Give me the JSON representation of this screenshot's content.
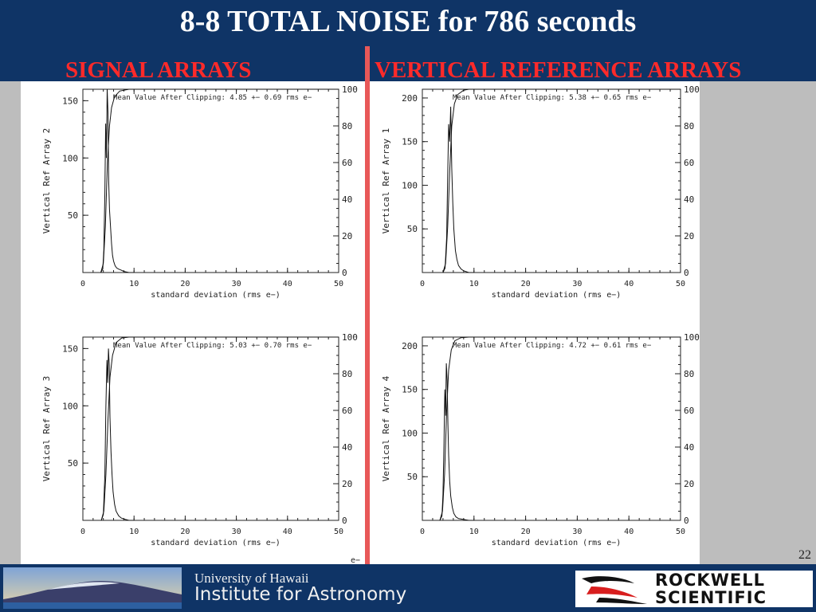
{
  "slide": {
    "title": "8-8 TOTAL NOISE for 786 seconds",
    "left_heading": "SIGNAL ARRAYS",
    "right_heading": "VERTICAL REFERENCE ARRAYS",
    "page_number": "22",
    "corner_label": "e−"
  },
  "footer": {
    "uh_line1": "University of Hawaii",
    "uh_line2": "Institute for Astronomy",
    "rs_line1": "ROCKWELL",
    "rs_line2": "SCIENTIFIC"
  },
  "colors": {
    "header_bg": "#0f3466",
    "heading_red": "#ff2a2a",
    "divider": "#e85858"
  },
  "chart_data": [
    {
      "type": "line",
      "ylabel": "Vertical Ref Array 2",
      "xlabel": "standard deviation (rms e−)",
      "annotation": "Mean Value After Clipping:   4.85 +− 0.69 rms e−",
      "xlim": [
        0,
        50
      ],
      "ylim": [
        0,
        160
      ],
      "y2lim": [
        0,
        100
      ],
      "xticks": [
        0,
        10,
        20,
        30,
        40,
        50
      ],
      "yticks": [
        50,
        100,
        150
      ],
      "y2ticks": [
        0,
        20,
        40,
        60,
        80,
        100
      ],
      "histogram": [
        [
          3.5,
          0
        ],
        [
          3.9,
          3
        ],
        [
          4.1,
          20
        ],
        [
          4.3,
          70
        ],
        [
          4.45,
          130
        ],
        [
          4.6,
          100
        ],
        [
          4.75,
          160
        ],
        [
          4.9,
          140
        ],
        [
          5.05,
          80
        ],
        [
          5.2,
          55
        ],
        [
          5.4,
          40
        ],
        [
          5.6,
          25
        ],
        [
          5.8,
          15
        ],
        [
          6.0,
          10
        ],
        [
          6.3,
          6
        ],
        [
          6.6,
          4
        ],
        [
          7.0,
          3
        ],
        [
          7.5,
          2
        ],
        [
          8.0,
          1
        ],
        [
          9.0,
          0
        ],
        [
          10.0,
          0
        ]
      ],
      "cumulative": [
        [
          3.5,
          0
        ],
        [
          4.0,
          5
        ],
        [
          4.4,
          25
        ],
        [
          4.8,
          60
        ],
        [
          5.2,
          80
        ],
        [
          5.6,
          90
        ],
        [
          6.2,
          96
        ],
        [
          7.2,
          99
        ],
        [
          9,
          100
        ]
      ]
    },
    {
      "type": "line",
      "ylabel": "Vertical Ref Array 1",
      "xlabel": "standard deviation (rms e−)",
      "annotation": "Mean Value After Clipping:   5.38 +− 0.65 rms e−",
      "xlim": [
        0,
        50
      ],
      "ylim": [
        0,
        210
      ],
      "y2lim": [
        0,
        100
      ],
      "xticks": [
        0,
        10,
        20,
        30,
        40,
        50
      ],
      "yticks": [
        50,
        100,
        150,
        200
      ],
      "y2ticks": [
        0,
        20,
        40,
        60,
        80,
        100
      ],
      "histogram": [
        [
          4.0,
          0
        ],
        [
          4.4,
          5
        ],
        [
          4.7,
          40
        ],
        [
          4.9,
          110
        ],
        [
          5.1,
          170
        ],
        [
          5.3,
          150
        ],
        [
          5.5,
          190
        ],
        [
          5.7,
          120
        ],
        [
          5.9,
          80
        ],
        [
          6.1,
          50
        ],
        [
          6.4,
          25
        ],
        [
          6.7,
          15
        ],
        [
          7.0,
          8
        ],
        [
          7.5,
          4
        ],
        [
          8.0,
          2
        ],
        [
          9.0,
          0
        ],
        [
          10.0,
          0
        ]
      ],
      "cumulative": [
        [
          4.0,
          0
        ],
        [
          4.5,
          5
        ],
        [
          4.9,
          25
        ],
        [
          5.3,
          55
        ],
        [
          5.7,
          80
        ],
        [
          6.2,
          92
        ],
        [
          6.8,
          97
        ],
        [
          8,
          99.5
        ],
        [
          9,
          100
        ]
      ]
    },
    {
      "type": "line",
      "ylabel": "Vertical Ref Array 3",
      "xlabel": "standard deviation (rms e−)",
      "annotation": "Mean Value After Clipping:   5.03 +− 0.70 rms e−",
      "xlim": [
        0,
        50
      ],
      "ylim": [
        0,
        160
      ],
      "y2lim": [
        0,
        100
      ],
      "xticks": [
        0,
        10,
        20,
        30,
        40,
        50
      ],
      "yticks": [
        50,
        100,
        150
      ],
      "y2ticks": [
        0,
        20,
        40,
        60,
        80,
        100
      ],
      "histogram": [
        [
          3.6,
          0
        ],
        [
          4.0,
          5
        ],
        [
          4.3,
          40
        ],
        [
          4.5,
          100
        ],
        [
          4.7,
          140
        ],
        [
          4.85,
          120
        ],
        [
          5.0,
          150
        ],
        [
          5.15,
          135
        ],
        [
          5.3,
          90
        ],
        [
          5.5,
          60
        ],
        [
          5.7,
          40
        ],
        [
          5.9,
          25
        ],
        [
          6.2,
          14
        ],
        [
          6.5,
          8
        ],
        [
          7.0,
          4
        ],
        [
          7.5,
          2
        ],
        [
          8.2,
          1
        ],
        [
          9.0,
          0
        ],
        [
          10.0,
          0
        ]
      ],
      "cumulative": [
        [
          3.6,
          0
        ],
        [
          4.1,
          5
        ],
        [
          4.5,
          25
        ],
        [
          4.9,
          55
        ],
        [
          5.3,
          78
        ],
        [
          5.8,
          90
        ],
        [
          6.5,
          97
        ],
        [
          7.6,
          99.5
        ],
        [
          9,
          100
        ]
      ]
    },
    {
      "type": "line",
      "ylabel": "Vertical Ref Array 4",
      "xlabel": "standard deviation (rms e−)",
      "annotation": "Mean Value After Clipping:   4.72 +− 0.61 rms e−",
      "xlim": [
        0,
        50
      ],
      "ylim": [
        0,
        210
      ],
      "y2lim": [
        0,
        100
      ],
      "xticks": [
        0,
        10,
        20,
        30,
        40,
        50
      ],
      "yticks": [
        50,
        100,
        150,
        200
      ],
      "y2ticks": [
        0,
        20,
        40,
        60,
        80,
        100
      ],
      "histogram": [
        [
          3.4,
          0
        ],
        [
          3.8,
          5
        ],
        [
          4.0,
          30
        ],
        [
          4.2,
          90
        ],
        [
          4.35,
          150
        ],
        [
          4.5,
          120
        ],
        [
          4.65,
          180
        ],
        [
          4.8,
          160
        ],
        [
          4.95,
          110
        ],
        [
          5.1,
          75
        ],
        [
          5.3,
          45
        ],
        [
          5.5,
          28
        ],
        [
          5.8,
          15
        ],
        [
          6.1,
          8
        ],
        [
          6.5,
          4
        ],
        [
          7.0,
          2
        ],
        [
          8.0,
          1
        ],
        [
          9.0,
          0
        ],
        [
          10.0,
          0
        ]
      ],
      "cumulative": [
        [
          3.4,
          0
        ],
        [
          3.9,
          5
        ],
        [
          4.3,
          25
        ],
        [
          4.7,
          60
        ],
        [
          5.1,
          82
        ],
        [
          5.6,
          93
        ],
        [
          6.3,
          98
        ],
        [
          7.5,
          99.7
        ],
        [
          9,
          100
        ]
      ]
    }
  ]
}
